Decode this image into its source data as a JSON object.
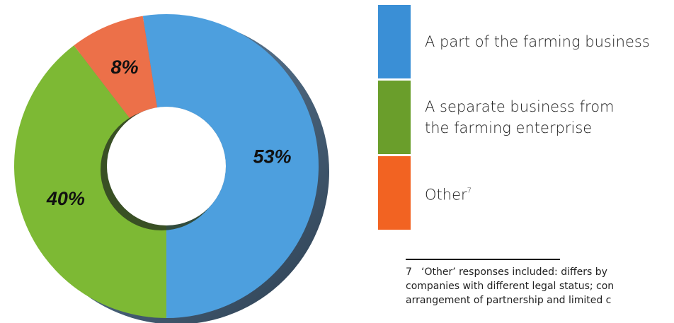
{
  "chart_data": {
    "type": "donut",
    "series": [
      {
        "name": "A part of the farming business",
        "color": "#4d9fde",
        "legend_color": "#3a8fd6",
        "values": [
          53
        ],
        "value_labels": [
          "53%"
        ]
      },
      {
        "name": "A separate business from the farming enterprise",
        "color": "#7db934",
        "legend_color": "#6a9e2b",
        "values": [
          40
        ],
        "value_labels": [
          "40%"
        ]
      },
      {
        "name": "Other",
        "footnote_marker": "7",
        "color": "#ec7049",
        "legend_color": "#f26322",
        "values": [
          8
        ],
        "value_labels": [
          "8%"
        ]
      }
    ],
    "footnote": {
      "marker": "7",
      "lines": [
        "‘Other’ responses included:  differs by",
        "companies with different legal status; con",
        "arrangement of partnership and limited c"
      ]
    }
  }
}
